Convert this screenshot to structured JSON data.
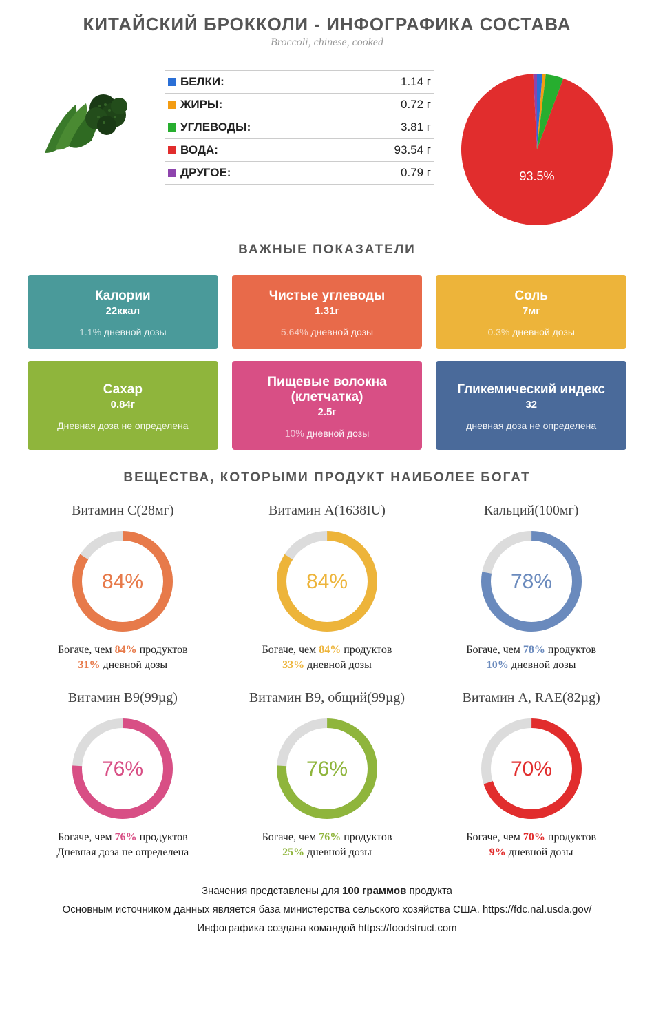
{
  "header": {
    "title": "КИТАЙСКИЙ БРОККОЛИ - ИНФОГРАФИКА СОСТАВА",
    "subtitle": "Broccoli, chinese, cooked"
  },
  "macros": {
    "rows": [
      {
        "label": "БЕЛКИ:",
        "value": "1.14 г",
        "color": "#2a6fd6"
      },
      {
        "label": "ЖИРЫ:",
        "value": "0.72 г",
        "color": "#f39c12"
      },
      {
        "label": "УГЛЕВОДЫ:",
        "value": "3.81 г",
        "color": "#27ae2f"
      },
      {
        "label": "ВОДА:",
        "value": "93.54 г",
        "color": "#e12d2d"
      },
      {
        "label": "ДРУГОЕ:",
        "value": "0.79 г",
        "color": "#8e44ad"
      }
    ]
  },
  "pie": {
    "type": "pie",
    "center_label": "93.5%",
    "label_color": "#ffffff",
    "slices": [
      {
        "value": 1.14,
        "color": "#2a6fd6"
      },
      {
        "value": 0.72,
        "color": "#f39c12"
      },
      {
        "value": 3.81,
        "color": "#27ae2f"
      },
      {
        "value": 93.54,
        "color": "#e12d2d"
      },
      {
        "value": 0.79,
        "color": "#8e44ad"
      }
    ],
    "radius": 110
  },
  "sections": {
    "metrics_title": "ВАЖНЫЕ ПОКАЗАТЕЛИ",
    "nutrients_title": "ВЕЩЕСТВА, КОТОРЫМИ ПРОДУКТ НАИБОЛЕЕ БОГАТ"
  },
  "metric_cards": [
    {
      "title": "Калории",
      "value": "22ккал",
      "sub_pct": "1.1%",
      "sub_text": " дневной дозы",
      "bg": "#4a9a9a"
    },
    {
      "title": "Чистые углеводы",
      "value": "1.31г",
      "sub_pct": "5.64%",
      "sub_text": " дневной дозы",
      "bg": "#e86a4a"
    },
    {
      "title": "Соль",
      "value": "7мг",
      "sub_pct": "0.3%",
      "sub_text": " дневной дозы",
      "bg": "#edb43a"
    },
    {
      "title": "Сахар",
      "value": "0.84г",
      "sub_pct": "",
      "sub_text": "Дневная доза не определена",
      "bg": "#8fb53c"
    },
    {
      "title": "Пищевые волокна (клетчатка)",
      "value": "2.5г",
      "sub_pct": "10%",
      "sub_text": " дневной дозы",
      "bg": "#d84f85"
    },
    {
      "title": "Гликемический индекс",
      "value": "32",
      "sub_pct": "",
      "sub_text": "дневная доза не определена",
      "bg": "#4a6a9a"
    }
  ],
  "donut_common": {
    "track_color": "#dcdcdc",
    "stroke_width": 14,
    "radius": 66,
    "text_prefix_richer": "Богаче, чем ",
    "text_suffix_richer": " продуктов",
    "text_suffix_daily": " дневной дозы",
    "text_daily_undefined": "Дневная доза не определена"
  },
  "donuts": [
    {
      "title": "Витамин C(28мг)",
      "pct": 84,
      "color": "#e77a4a",
      "daily": "31%"
    },
    {
      "title": "Витамин A(1638IU)",
      "pct": 84,
      "color": "#edb43a",
      "daily": "33%"
    },
    {
      "title": "Кальций(100мг)",
      "pct": 78,
      "color": "#6a8abd",
      "daily": "10%"
    },
    {
      "title": "Витамин B9(99µg)",
      "pct": 76,
      "color": "#d84f85",
      "daily": null
    },
    {
      "title": "Витамин B9, общий(99µg)",
      "pct": 76,
      "color": "#8fb53c",
      "daily": "25%"
    },
    {
      "title": "Витамин A, RAE(82µg)",
      "pct": 70,
      "color": "#e12d2d",
      "daily": "9%"
    }
  ],
  "footer": {
    "line1_a": "Значения представлены для ",
    "line1_b": "100 граммов",
    "line1_c": " продукта",
    "line2": "Основным источником данных является база министерства сельского хозяйства США. https://fdc.nal.usda.gov/",
    "line3": "Инфографика создана командой https://foodstruct.com"
  }
}
